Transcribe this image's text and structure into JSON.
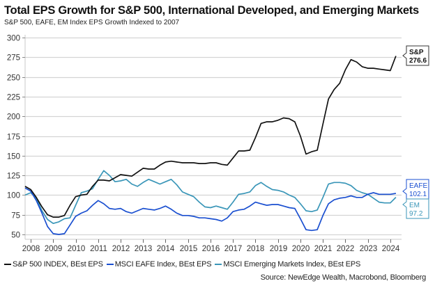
{
  "chart_data": {
    "type": "line",
    "title": "Total EPS Growth for S&P 500, International Developed, and Emerging Markets",
    "subtitle": "S&P 500, EAFE, EM Index EPS Growth Indexed to 2007",
    "xlabel": "",
    "ylabel": "",
    "ylim": [
      45,
      300
    ],
    "xlim": [
      2007.75,
      2024.5
    ],
    "yticks": [
      50,
      75,
      100,
      125,
      150,
      175,
      200,
      225,
      250,
      275,
      300
    ],
    "xticks": [
      "2008",
      "2009",
      "2010",
      "2011",
      "2012",
      "2013",
      "2014",
      "2015",
      "2016",
      "2017",
      "2018",
      "2019",
      "2020",
      "2021",
      "2022",
      "2023",
      "2024"
    ],
    "grid": true,
    "legend_position": "bottom",
    "source": "Source: NewEdge Wealth, Macrobond, Bloomberg",
    "series": [
      {
        "name": "S&P 500 INDEX, BEst EPS",
        "color": "#111111",
        "end_label": "S&P",
        "end_value": "276.6",
        "points": [
          [
            2007.75,
            111
          ],
          [
            2008.0,
            107
          ],
          [
            2008.25,
            97
          ],
          [
            2008.5,
            85
          ],
          [
            2008.75,
            75
          ],
          [
            2009.0,
            72
          ],
          [
            2009.25,
            72
          ],
          [
            2009.5,
            74
          ],
          [
            2009.75,
            87
          ],
          [
            2010.0,
            98
          ],
          [
            2010.25,
            100
          ],
          [
            2010.5,
            101
          ],
          [
            2010.75,
            111
          ],
          [
            2011.0,
            119
          ],
          [
            2011.25,
            119
          ],
          [
            2011.5,
            118
          ],
          [
            2011.75,
            122
          ],
          [
            2012.0,
            126
          ],
          [
            2012.25,
            125
          ],
          [
            2012.5,
            124
          ],
          [
            2012.75,
            129
          ],
          [
            2013.0,
            134
          ],
          [
            2013.25,
            133
          ],
          [
            2013.5,
            133
          ],
          [
            2013.75,
            138
          ],
          [
            2014.0,
            142
          ],
          [
            2014.25,
            143
          ],
          [
            2014.5,
            142
          ],
          [
            2014.75,
            141
          ],
          [
            2015.0,
            141
          ],
          [
            2015.25,
            141
          ],
          [
            2015.5,
            140
          ],
          [
            2015.75,
            140
          ],
          [
            2016.0,
            141
          ],
          [
            2016.25,
            141
          ],
          [
            2016.5,
            139
          ],
          [
            2016.75,
            138
          ],
          [
            2017.0,
            147
          ],
          [
            2017.25,
            156
          ],
          [
            2017.5,
            156
          ],
          [
            2017.75,
            157
          ],
          [
            2018.0,
            173
          ],
          [
            2018.25,
            191
          ],
          [
            2018.5,
            193
          ],
          [
            2018.75,
            193
          ],
          [
            2019.0,
            195
          ],
          [
            2019.25,
            198
          ],
          [
            2019.5,
            197
          ],
          [
            2019.75,
            193
          ],
          [
            2020.0,
            175
          ],
          [
            2020.25,
            152
          ],
          [
            2020.5,
            155
          ],
          [
            2020.75,
            157
          ],
          [
            2021.0,
            190
          ],
          [
            2021.25,
            222
          ],
          [
            2021.5,
            234
          ],
          [
            2021.75,
            242
          ],
          [
            2022.0,
            259
          ],
          [
            2022.25,
            272
          ],
          [
            2022.5,
            269
          ],
          [
            2022.75,
            263
          ],
          [
            2023.0,
            261
          ],
          [
            2023.25,
            261
          ],
          [
            2023.5,
            260
          ],
          [
            2023.75,
            259
          ],
          [
            2024.0,
            258
          ],
          [
            2024.25,
            276.6
          ]
        ]
      },
      {
        "name": "MSCI EAFE Index, BEst EPS",
        "color": "#1a4fd0",
        "end_label": "EAFE",
        "end_value": "102.1",
        "points": [
          [
            2007.75,
            109
          ],
          [
            2008.0,
            105
          ],
          [
            2008.25,
            93
          ],
          [
            2008.5,
            77
          ],
          [
            2008.75,
            60
          ],
          [
            2009.0,
            51
          ],
          [
            2009.25,
            50
          ],
          [
            2009.5,
            51
          ],
          [
            2009.75,
            62
          ],
          [
            2010.0,
            73
          ],
          [
            2010.25,
            77
          ],
          [
            2010.5,
            80
          ],
          [
            2010.75,
            87
          ],
          [
            2011.0,
            93
          ],
          [
            2011.25,
            89
          ],
          [
            2011.5,
            83
          ],
          [
            2011.75,
            82
          ],
          [
            2012.0,
            83
          ],
          [
            2012.25,
            79
          ],
          [
            2012.5,
            77
          ],
          [
            2012.75,
            80
          ],
          [
            2013.0,
            83
          ],
          [
            2013.25,
            82
          ],
          [
            2013.5,
            81
          ],
          [
            2013.75,
            83
          ],
          [
            2014.0,
            86
          ],
          [
            2014.25,
            82
          ],
          [
            2014.5,
            77
          ],
          [
            2014.75,
            74
          ],
          [
            2015.0,
            74
          ],
          [
            2015.25,
            73
          ],
          [
            2015.5,
            71
          ],
          [
            2015.75,
            71
          ],
          [
            2016.0,
            70
          ],
          [
            2016.25,
            69
          ],
          [
            2016.5,
            67
          ],
          [
            2016.75,
            71
          ],
          [
            2017.0,
            79
          ],
          [
            2017.25,
            81
          ],
          [
            2017.5,
            82
          ],
          [
            2017.75,
            86
          ],
          [
            2018.0,
            91
          ],
          [
            2018.25,
            89
          ],
          [
            2018.5,
            87
          ],
          [
            2018.75,
            88
          ],
          [
            2019.0,
            88
          ],
          [
            2019.25,
            86
          ],
          [
            2019.5,
            84
          ],
          [
            2019.75,
            83
          ],
          [
            2020.0,
            70
          ],
          [
            2020.25,
            56
          ],
          [
            2020.5,
            55
          ],
          [
            2020.75,
            56
          ],
          [
            2021.0,
            74
          ],
          [
            2021.25,
            89
          ],
          [
            2021.5,
            94
          ],
          [
            2021.75,
            96
          ],
          [
            2022.0,
            97
          ],
          [
            2022.25,
            99
          ],
          [
            2022.5,
            97
          ],
          [
            2022.75,
            97
          ],
          [
            2023.0,
            101
          ],
          [
            2023.25,
            103
          ],
          [
            2023.5,
            101
          ],
          [
            2023.75,
            101
          ],
          [
            2024.0,
            101
          ],
          [
            2024.25,
            102.1
          ]
        ]
      },
      {
        "name": "MSCI Emerging Markets Index, BEst EPS",
        "color": "#3a96b8",
        "end_label": "EM",
        "end_value": "97.2",
        "points": [
          [
            2007.75,
            100
          ],
          [
            2008.0,
            103
          ],
          [
            2008.25,
            96
          ],
          [
            2008.5,
            80
          ],
          [
            2008.75,
            69
          ],
          [
            2009.0,
            64
          ],
          [
            2009.25,
            66
          ],
          [
            2009.5,
            70
          ],
          [
            2009.75,
            71
          ],
          [
            2010.0,
            87
          ],
          [
            2010.25,
            103
          ],
          [
            2010.5,
            105
          ],
          [
            2010.75,
            108
          ],
          [
            2011.0,
            120
          ],
          [
            2011.25,
            131
          ],
          [
            2011.5,
            125
          ],
          [
            2011.75,
            117
          ],
          [
            2012.0,
            118
          ],
          [
            2012.25,
            120
          ],
          [
            2012.5,
            114
          ],
          [
            2012.75,
            111
          ],
          [
            2013.0,
            116
          ],
          [
            2013.25,
            120
          ],
          [
            2013.5,
            117
          ],
          [
            2013.75,
            114
          ],
          [
            2014.0,
            117
          ],
          [
            2014.25,
            120
          ],
          [
            2014.5,
            113
          ],
          [
            2014.75,
            104
          ],
          [
            2015.0,
            101
          ],
          [
            2015.25,
            98
          ],
          [
            2015.5,
            91
          ],
          [
            2015.75,
            85
          ],
          [
            2016.0,
            84
          ],
          [
            2016.25,
            86
          ],
          [
            2016.5,
            84
          ],
          [
            2016.75,
            82
          ],
          [
            2017.0,
            91
          ],
          [
            2017.25,
            101
          ],
          [
            2017.5,
            102
          ],
          [
            2017.75,
            104
          ],
          [
            2018.0,
            112
          ],
          [
            2018.25,
            116
          ],
          [
            2018.5,
            111
          ],
          [
            2018.75,
            107
          ],
          [
            2019.0,
            106
          ],
          [
            2019.25,
            104
          ],
          [
            2019.5,
            100
          ],
          [
            2019.75,
            97
          ],
          [
            2020.0,
            89
          ],
          [
            2020.25,
            80
          ],
          [
            2020.5,
            79
          ],
          [
            2020.75,
            81
          ],
          [
            2021.0,
            97
          ],
          [
            2021.25,
            114
          ],
          [
            2021.5,
            116
          ],
          [
            2021.75,
            116
          ],
          [
            2022.0,
            115
          ],
          [
            2022.25,
            112
          ],
          [
            2022.5,
            106
          ],
          [
            2022.75,
            103
          ],
          [
            2023.0,
            101
          ],
          [
            2023.25,
            96
          ],
          [
            2023.5,
            91
          ],
          [
            2023.75,
            90
          ],
          [
            2024.0,
            90
          ],
          [
            2024.25,
            97.2
          ]
        ]
      }
    ]
  }
}
